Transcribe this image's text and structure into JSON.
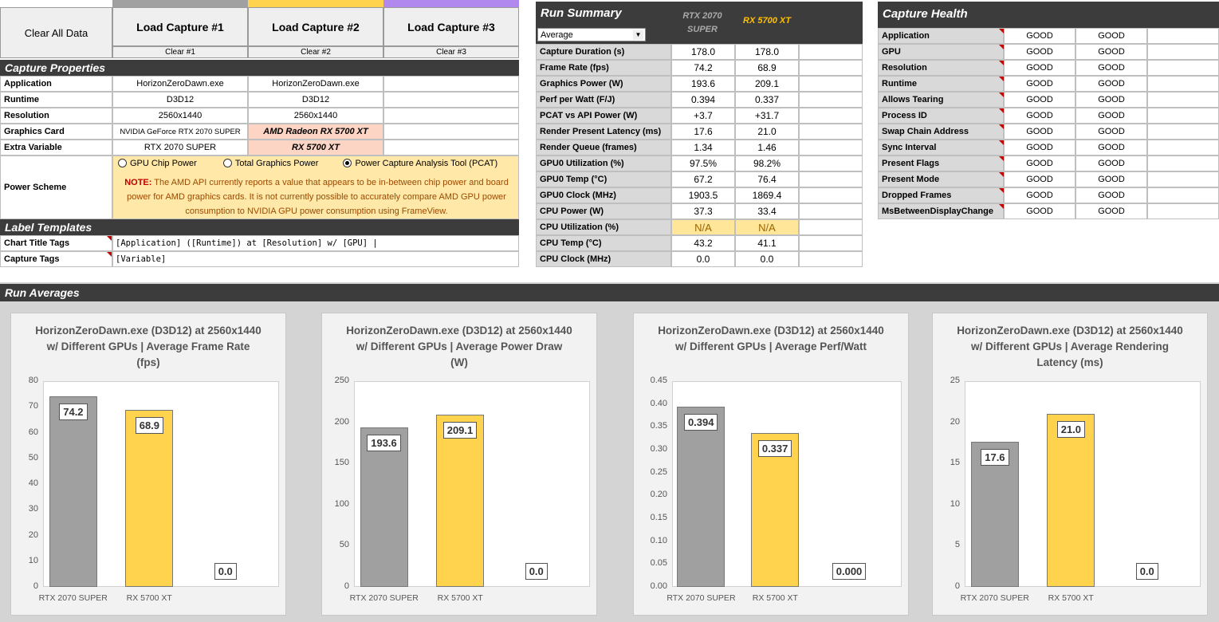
{
  "buttons": {
    "clear_all": "Clear All Data",
    "load1": "Load Capture #1",
    "load2": "Load Capture #2",
    "load3": "Load Capture #3",
    "clear1": "Clear #1",
    "clear2": "Clear #2",
    "clear3": "Clear #3"
  },
  "colors": {
    "cap1": "#a0a0a0",
    "cap2": "#ffd34d",
    "cap3": "#b088ee",
    "header": "#3c3c3c"
  },
  "capture_properties": {
    "title": "Capture Properties",
    "rows": [
      {
        "label": "Application",
        "v1": "HorizonZeroDawn.exe",
        "v2": "HorizonZeroDawn.exe"
      },
      {
        "label": "Runtime",
        "v1": "D3D12",
        "v2": "D3D12"
      },
      {
        "label": "Resolution",
        "v1": "2560x1440",
        "v2": "2560x1440"
      },
      {
        "label": "Graphics Card",
        "v1": "NVIDIA GeForce RTX 2070 SUPER",
        "v2": "AMD Radeon RX 5700 XT"
      },
      {
        "label": "Extra Variable",
        "v1": "RTX 2070 SUPER",
        "v2": "RX 5700 XT"
      }
    ],
    "power_scheme_label": "Power Scheme",
    "power_options": [
      "GPU Chip Power",
      "Total Graphics Power",
      "Power Capture Analysis Tool (PCAT)"
    ],
    "note_prefix": "NOTE:",
    "note_text": " The AMD API currently reports a value that appears to be in-between chip power and board power for AMD graphics cards. It is not currently possible to accurately compare AMD GPU power consumption to NVIDIA GPU power consumption using FrameView."
  },
  "label_templates": {
    "title": "Label Templates",
    "rows": [
      {
        "label": "Chart Title Tags",
        "value": "[Application] ([Runtime]) at [Resolution] w/ [GPU] |"
      },
      {
        "label": "Capture Tags",
        "value": "[Variable]"
      }
    ]
  },
  "run_summary": {
    "title": "Run Summary",
    "mode": "Average",
    "col1": "RTX 2070 SUPER",
    "col2": "RX 5700 XT",
    "rows": [
      {
        "label": "Capture Duration (s)",
        "v1": "178.0",
        "v2": "178.0"
      },
      {
        "label": "Frame Rate (fps)",
        "v1": "74.2",
        "v2": "68.9"
      },
      {
        "label": "Graphics Power (W)",
        "v1": "193.6",
        "v2": "209.1"
      },
      {
        "label": "Perf per Watt (F/J)",
        "v1": "0.394",
        "v2": "0.337"
      },
      {
        "label": "PCAT vs API Power (W)",
        "v1": "+3.7",
        "v2": "+31.7"
      },
      {
        "label": "Render Present Latency (ms)",
        "v1": "17.6",
        "v2": "21.0"
      },
      {
        "label": "Render Queue (frames)",
        "v1": "1.34",
        "v2": "1.46"
      },
      {
        "label": "GPU0 Utilization (%)",
        "v1": "97.5%",
        "v2": "98.2%"
      },
      {
        "label": "GPU0 Temp (°C)",
        "v1": "67.2",
        "v2": "76.4"
      },
      {
        "label": "GPU0 Clock (MHz)",
        "v1": "1903.5",
        "v2": "1869.4"
      },
      {
        "label": "CPU Power (W)",
        "v1": "37.3",
        "v2": "33.4"
      },
      {
        "label": "CPU Utilization (%)",
        "v1": "N/A",
        "v2": "N/A"
      },
      {
        "label": "CPU Temp (°C)",
        "v1": "43.2",
        "v2": "41.1"
      },
      {
        "label": "CPU Clock (MHz)",
        "v1": "0.0",
        "v2": "0.0"
      }
    ]
  },
  "capture_health": {
    "title": "Capture Health",
    "rows": [
      {
        "label": "Application",
        "v1": "GOOD",
        "v2": "GOOD"
      },
      {
        "label": "GPU",
        "v1": "GOOD",
        "v2": "GOOD"
      },
      {
        "label": "Resolution",
        "v1": "GOOD",
        "v2": "GOOD"
      },
      {
        "label": "Runtime",
        "v1": "GOOD",
        "v2": "GOOD"
      },
      {
        "label": "Allows Tearing",
        "v1": "GOOD",
        "v2": "GOOD"
      },
      {
        "label": "Process ID",
        "v1": "GOOD",
        "v2": "GOOD"
      },
      {
        "label": "Swap Chain Address",
        "v1": "GOOD",
        "v2": "GOOD"
      },
      {
        "label": "Sync Interval",
        "v1": "GOOD",
        "v2": "GOOD"
      },
      {
        "label": "Present Flags",
        "v1": "GOOD",
        "v2": "GOOD"
      },
      {
        "label": "Present Mode",
        "v1": "GOOD",
        "v2": "GOOD"
      },
      {
        "label": "Dropped Frames",
        "v1": "GOOD",
        "v2": "GOOD"
      },
      {
        "label": "MsBetweenDisplayChange",
        "v1": "GOOD",
        "v2": "GOOD"
      }
    ]
  },
  "run_averages_title": "Run Averages",
  "chart_data": [
    {
      "type": "bar",
      "title": "HorizonZeroDawn.exe (D3D12) at 2560x1440 w/ Different GPUs | Average Frame Rate (fps)",
      "categories": [
        "RTX 2070 SUPER",
        "RX 5700 XT",
        ""
      ],
      "values": [
        74.2,
        68.9,
        0.0
      ],
      "labels": [
        "74.2",
        "68.9",
        "0.0"
      ],
      "ylim": [
        0,
        80
      ],
      "ticks": [
        "0",
        "10",
        "20",
        "30",
        "40",
        "50",
        "60",
        "70",
        "80"
      ]
    },
    {
      "type": "bar",
      "title": "HorizonZeroDawn.exe (D3D12) at 2560x1440 w/ Different GPUs | Average Power Draw (W)",
      "categories": [
        "RTX 2070 SUPER",
        "RX 5700 XT",
        ""
      ],
      "values": [
        193.6,
        209.1,
        0.0
      ],
      "labels": [
        "193.6",
        "209.1",
        "0.0"
      ],
      "ylim": [
        0,
        250
      ],
      "ticks": [
        "0",
        "50",
        "100",
        "150",
        "200",
        "250"
      ]
    },
    {
      "type": "bar",
      "title": "HorizonZeroDawn.exe (D3D12) at 2560x1440 w/ Different GPUs | Average Perf/Watt",
      "categories": [
        "RTX 2070 SUPER",
        "RX 5700 XT",
        ""
      ],
      "values": [
        0.394,
        0.337,
        0.0
      ],
      "labels": [
        "0.394",
        "0.337",
        "0.000"
      ],
      "ylim": [
        0,
        0.45
      ],
      "ticks": [
        "0.00",
        "0.05",
        "0.10",
        "0.15",
        "0.20",
        "0.25",
        "0.30",
        "0.35",
        "0.40",
        "0.45"
      ]
    },
    {
      "type": "bar",
      "title": "HorizonZeroDawn.exe (D3D12) at 2560x1440 w/ Different GPUs | Average Rendering Latency (ms)",
      "categories": [
        "RTX 2070 SUPER",
        "RX 5700 XT",
        ""
      ],
      "values": [
        17.6,
        21.0,
        0.0
      ],
      "labels": [
        "17.6",
        "21.0",
        "0.0"
      ],
      "ylim": [
        0,
        25
      ],
      "ticks": [
        "0",
        "5",
        "10",
        "15",
        "20",
        "25"
      ]
    }
  ]
}
